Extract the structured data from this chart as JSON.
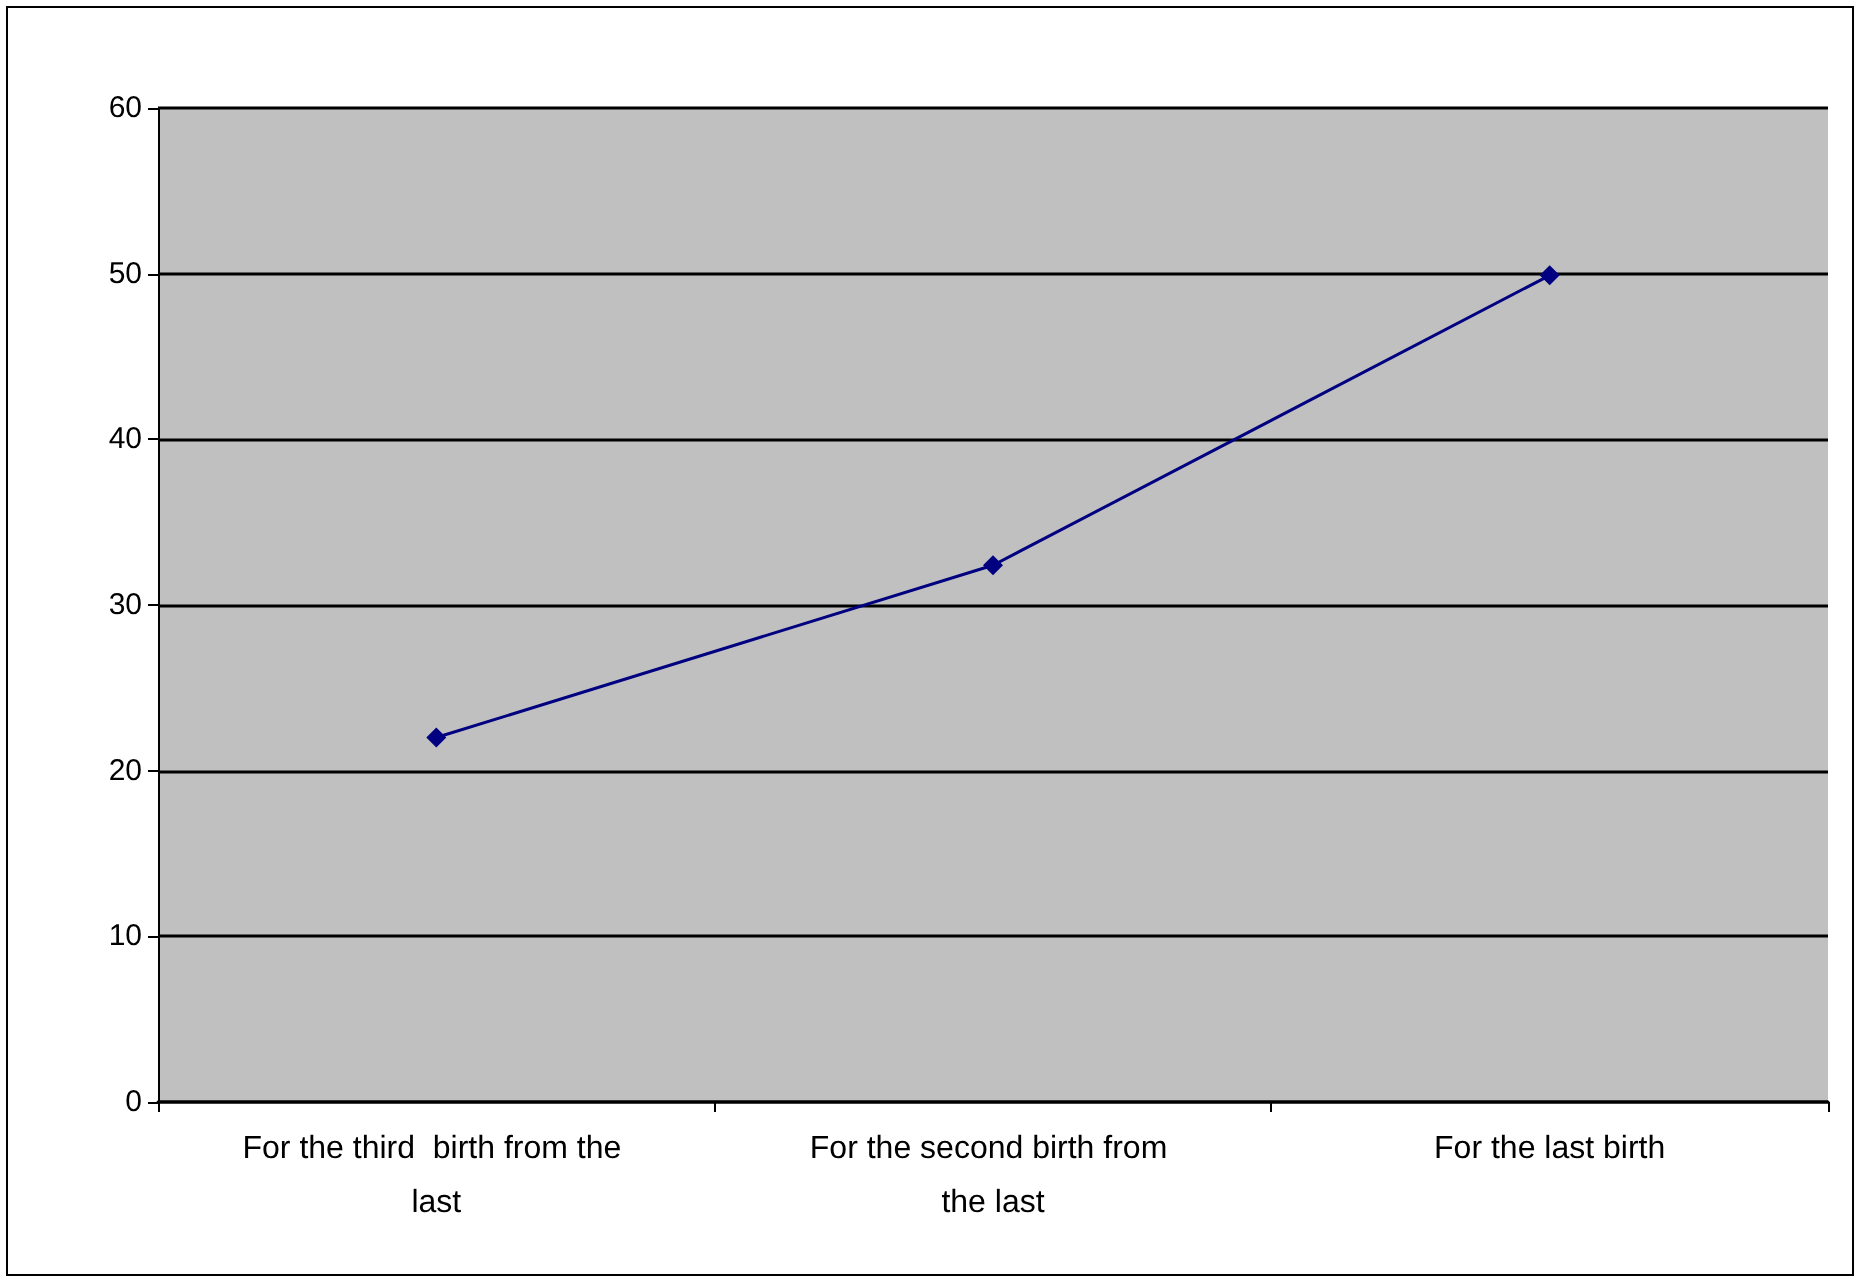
{
  "chart_data": {
    "type": "line",
    "categories": [
      "For the third  birth from the last",
      "For the second birth from the last",
      "For the last birth"
    ],
    "series": [
      {
        "color": "#000080",
        "values": [
          22,
          32.4,
          49.9
        ]
      }
    ],
    "ylim": [
      0,
      60
    ],
    "yticks": [
      0,
      10,
      20,
      30,
      40,
      50,
      60
    ],
    "grid": "y",
    "marker": "diamond",
    "line_style": "solid"
  }
}
